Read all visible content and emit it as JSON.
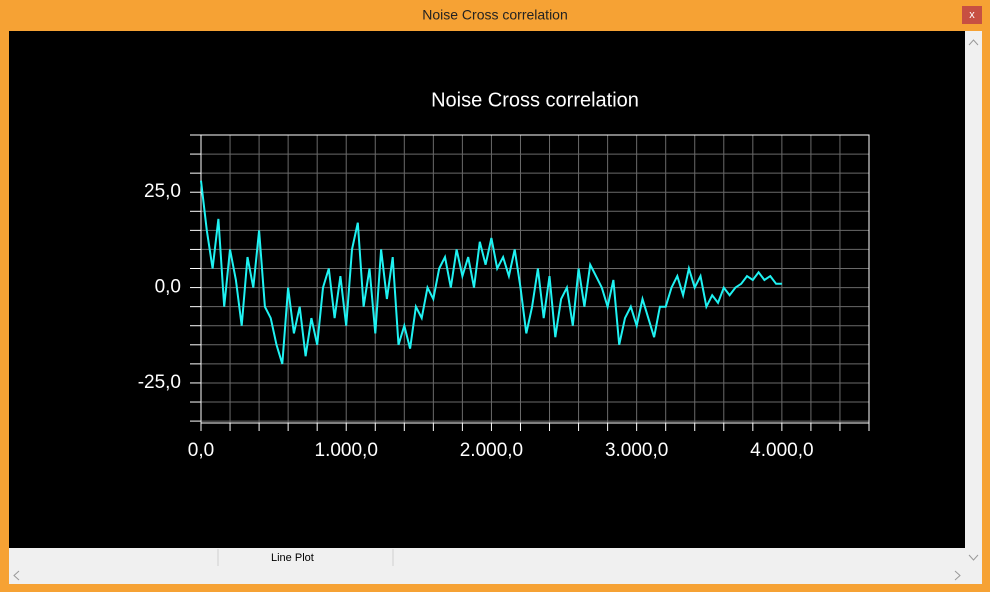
{
  "window": {
    "title": "Noise Cross correlation",
    "close": "x"
  },
  "status_bar": {
    "panels": [
      "Line Plot"
    ]
  },
  "chart_data": {
    "type": "line",
    "title": "Noise Cross correlation",
    "x": [
      0,
      40,
      80,
      120,
      160,
      200,
      240,
      280,
      320,
      360,
      400,
      440,
      480,
      520,
      560,
      600,
      640,
      680,
      720,
      760,
      800,
      840,
      880,
      920,
      960,
      1000,
      1040,
      1080,
      1120,
      1160,
      1200,
      1240,
      1280,
      1320,
      1360,
      1400,
      1440,
      1480,
      1520,
      1560,
      1600,
      1640,
      1680,
      1720,
      1760,
      1800,
      1840,
      1880,
      1920,
      1960,
      2000,
      2040,
      2080,
      2120,
      2160,
      2200,
      2240,
      2280,
      2320,
      2360,
      2400,
      2440,
      2480,
      2520,
      2560,
      2600,
      2640,
      2680,
      2720,
      2760,
      2800,
      2840,
      2880,
      2920,
      2960,
      3000,
      3040,
      3080,
      3120,
      3160,
      3200,
      3240,
      3280,
      3320,
      3360,
      3400,
      3440,
      3480,
      3520,
      3560,
      3600,
      3640,
      3680,
      3720,
      3760,
      3800,
      3840,
      3880,
      3920,
      3960,
      4000
    ],
    "values": [
      28,
      15,
      5,
      18,
      -5,
      10,
      2,
      -10,
      8,
      0,
      15,
      -5,
      -8,
      -15,
      -20,
      0,
      -12,
      -5,
      -18,
      -8,
      -15,
      0,
      5,
      -8,
      3,
      -10,
      10,
      17,
      -5,
      5,
      -12,
      10,
      -3,
      8,
      -15,
      -10,
      -16,
      -5,
      -8,
      0,
      -3,
      5,
      8,
      0,
      10,
      3,
      8,
      0,
      12,
      6,
      13,
      5,
      8,
      3,
      10,
      0,
      -12,
      -5,
      5,
      -8,
      3,
      -13,
      -3,
      0,
      -10,
      5,
      -5,
      6,
      3,
      0,
      -5,
      2,
      -15,
      -8,
      -5,
      -10,
      -3,
      -8,
      -13,
      -5,
      -5,
      0,
      3,
      -2,
      5,
      0,
      3,
      -5,
      -2,
      -4,
      0,
      -2,
      0,
      1,
      3,
      2,
      4,
      2,
      3,
      1,
      1
    ],
    "color": "#1ff2f2",
    "xlim": [
      0,
      4600
    ],
    "xticks": [
      {
        "value": 0,
        "label": "0,0"
      },
      {
        "value": 1000,
        "label": "1.000,0"
      },
      {
        "value": 2000,
        "label": "2.000,0"
      },
      {
        "value": 3000,
        "label": "3.000,0"
      },
      {
        "value": 4000,
        "label": "4.000,0"
      }
    ],
    "xgrid": [
      0,
      200,
      400,
      600,
      800,
      1000,
      1200,
      1400,
      1600,
      1800,
      2000,
      2200,
      2400,
      2600,
      2800,
      3000,
      3200,
      3400,
      3600,
      3800,
      4000,
      4200,
      4400,
      4600
    ],
    "ylim": [
      -35.5,
      40
    ],
    "yticks": [
      {
        "value": -25,
        "label": "-25,0"
      },
      {
        "value": 0,
        "label": "0,0"
      },
      {
        "value": 25,
        "label": "25,0"
      }
    ],
    "ygrid": [
      -35,
      -30,
      -25,
      -20,
      -15,
      -10,
      -5,
      0,
      5,
      10,
      15,
      20,
      25,
      30,
      35,
      40
    ],
    "grid": true
  }
}
